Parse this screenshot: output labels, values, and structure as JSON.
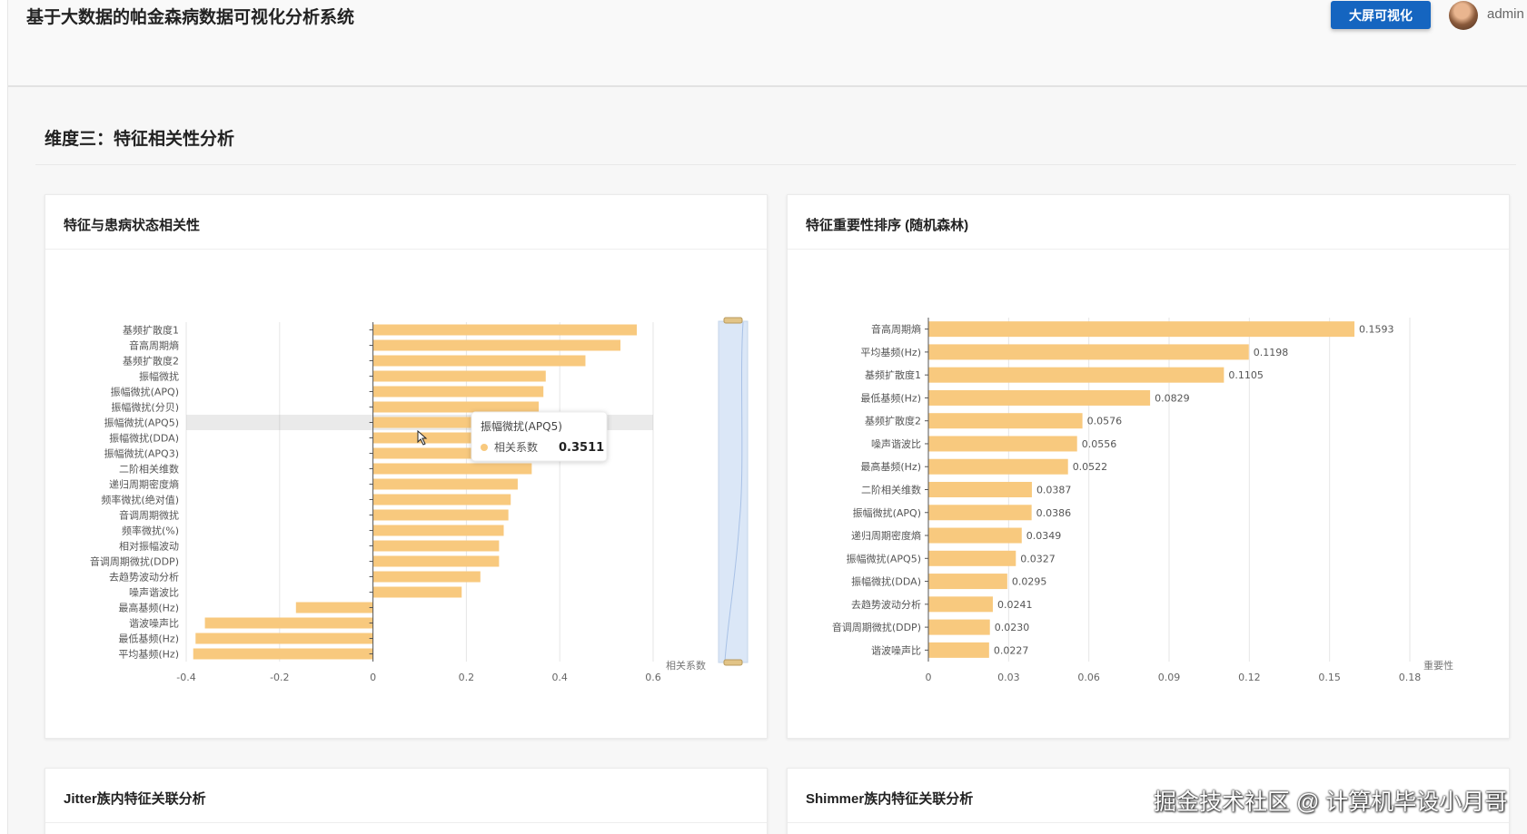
{
  "app": {
    "title": "基于大数据的帕金森病数据可视化分析系统"
  },
  "header": {
    "bigscreen_label": "大屏可视化",
    "username": "admin"
  },
  "section": {
    "title": "维度三：特征相关性分析"
  },
  "cards": {
    "correlation_title": "特征与患病状态相关性",
    "importance_title": "特征重要性排序 (随机森林)",
    "jitter_title": "Jitter族内特征关联分析",
    "shimmer_title": "Shimmer族内特征关联分析"
  },
  "tooltip": {
    "title": "振幅微扰(APQ5)",
    "label": "相关系数",
    "value": "0.3511"
  },
  "watermark": "掘金技术社区 @ 计算机毕设小月哥",
  "colors": {
    "bar": "#f8c97e",
    "accent": "#1565c0"
  },
  "chart_data": [
    {
      "type": "bar",
      "orientation": "horizontal",
      "categories": [
        "基频扩散度1",
        "音高周期熵",
        "基频扩散度2",
        "振幅微扰",
        "振幅微扰(APQ)",
        "振幅微扰(分贝)",
        "振幅微扰(APQ5)",
        "振幅微扰(DDA)",
        "振幅微扰(APQ3)",
        "二阶相关维数",
        "递归周期密度熵",
        "频率微扰(绝对值)",
        "音调周期微扰",
        "频率微扰(%)",
        "相对振幅波动",
        "音调周期微扰(DDP)",
        "去趋势波动分析",
        "噪声谐波比",
        "最高基频(Hz)",
        "谐波噪声比",
        "最低基频(Hz)",
        "平均基频(Hz)"
      ],
      "values": [
        0.565,
        0.53,
        0.455,
        0.37,
        0.365,
        0.355,
        0.3511,
        0.345,
        0.345,
        0.34,
        0.31,
        0.295,
        0.29,
        0.28,
        0.27,
        0.27,
        0.23,
        0.19,
        -0.165,
        -0.36,
        -0.38,
        -0.385
      ],
      "xlabel": "相关系数",
      "xlim": [
        -0.4,
        0.6
      ],
      "xticks": [
        "-0.4",
        "-0.2",
        "0",
        "0.2",
        "0.4",
        "0.6"
      ],
      "grid": true,
      "highlighted": "振幅微扰(APQ5)"
    },
    {
      "type": "bar",
      "orientation": "horizontal",
      "categories": [
        "音高周期熵",
        "平均基频(Hz)",
        "基频扩散度1",
        "最低基频(Hz)",
        "基频扩散度2",
        "噪声谐波比",
        "最高基频(Hz)",
        "二阶相关维数",
        "振幅微扰(APQ)",
        "递归周期密度熵",
        "振幅微扰(APQ5)",
        "振幅微扰(DDA)",
        "去趋势波动分析",
        "音调周期微扰(DDP)",
        "谐波噪声比"
      ],
      "values": [
        0.1593,
        0.1198,
        0.1105,
        0.0829,
        0.0576,
        0.0556,
        0.0522,
        0.0387,
        0.0386,
        0.0349,
        0.0327,
        0.0295,
        0.0241,
        0.023,
        0.0227
      ],
      "labels": [
        "0.1593",
        "0.1198",
        "0.1105",
        "0.0829",
        "0.0576",
        "0.0556",
        "0.0522",
        "0.0387",
        "0.0386",
        "0.0349",
        "0.0327",
        "0.0295",
        "0.0241",
        "0.0230",
        "0.0227"
      ],
      "xlabel": "重要性",
      "xlim": [
        0,
        0.18
      ],
      "xticks": [
        "0",
        "0.03",
        "0.06",
        "0.09",
        "0.12",
        "0.15",
        "0.18"
      ],
      "grid": true
    }
  ]
}
